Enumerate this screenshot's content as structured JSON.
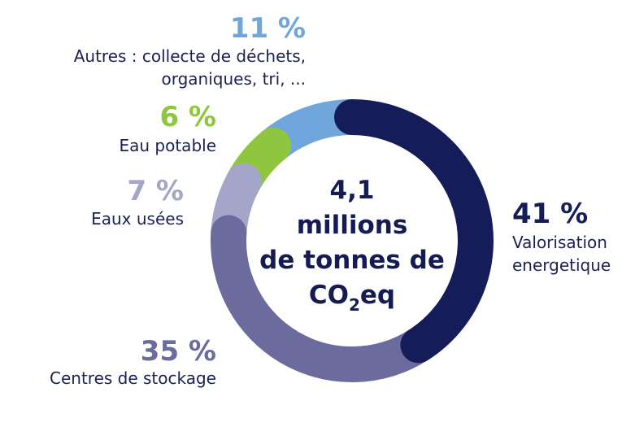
{
  "chart_data": {
    "type": "pie",
    "style": "donut",
    "center_text": {
      "line1": "4,1",
      "line2": "millions",
      "line3": "de tonnes de",
      "line4_main": "CO",
      "line4_sub": "2",
      "line4_suffix": "eq"
    },
    "slices": [
      {
        "label_lines": [
          "Valorisation",
          "energetique"
        ],
        "value": 41,
        "pct_text": "41 %",
        "color": "#141c5a",
        "pct_color": "#141c5a"
      },
      {
        "label_lines": [
          "Centres de stockage"
        ],
        "value": 35,
        "pct_text": "35 %",
        "color": "#6b6c9d",
        "pct_color": "#6b6c9d"
      },
      {
        "label_lines": [
          "Eaux usées"
        ],
        "value": 7,
        "pct_text": "7 %",
        "color": "#a3a6c9",
        "pct_color": "#a3a6c9"
      },
      {
        "label_lines": [
          "Eau potable"
        ],
        "value": 6,
        "pct_text": "6 %",
        "color": "#8ec63f",
        "pct_color": "#8ec63f"
      },
      {
        "label_lines": [
          "Autres : collecte de déchets,",
          "organiques, tri, ..."
        ],
        "value": 11,
        "pct_text": "11 %",
        "color": "#6fa6dc",
        "pct_color": "#6fa6dc"
      }
    ]
  }
}
